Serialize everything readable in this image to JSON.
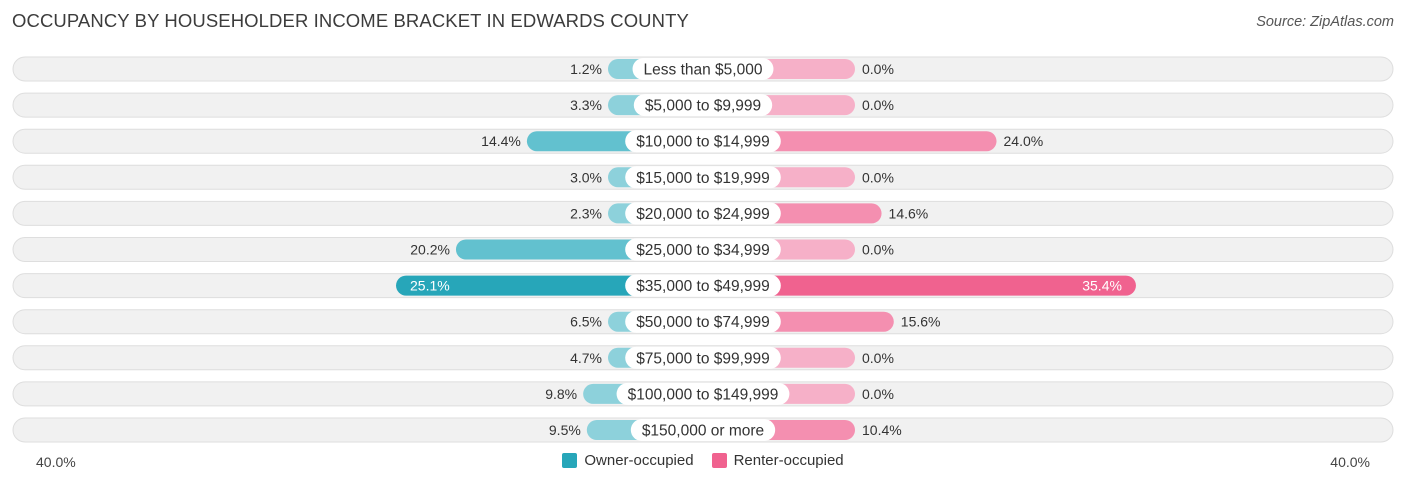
{
  "header": {
    "title": "OCCUPANCY BY HOUSEHOLDER INCOME BRACKET IN EDWARDS COUNTY",
    "source": "Source: ZipAtlas.com"
  },
  "axis": {
    "left_label": "40.0%",
    "right_label": "40.0%"
  },
  "legend": {
    "owner_label": "Owner-occupied",
    "renter_label": "Renter-occupied"
  },
  "colors": {
    "owner": "#62c1cf",
    "owner_strong": "#27a6b9",
    "owner_light": "#8dd1db",
    "renter": "#f48fb0",
    "renter_strong": "#f0628f",
    "renter_light": "#f6b0c8",
    "row_bg": "#f1f1f1",
    "row_border": "#dedede"
  },
  "chart_data": {
    "type": "bar",
    "orientation": "diverging-horizontal",
    "title": "OCCUPANCY BY HOUSEHOLDER INCOME BRACKET IN EDWARDS COUNTY",
    "xlim": [
      -40,
      40
    ],
    "categories": [
      "Less than $5,000",
      "$5,000 to $9,999",
      "$10,000 to $14,999",
      "$15,000 to $19,999",
      "$20,000 to $24,999",
      "$25,000 to $34,999",
      "$35,000 to $49,999",
      "$50,000 to $74,999",
      "$75,000 to $99,999",
      "$100,000 to $149,999",
      "$150,000 or more"
    ],
    "series": [
      {
        "name": "Owner-occupied",
        "values": [
          1.2,
          3.3,
          14.4,
          3.0,
          2.3,
          20.2,
          25.1,
          6.5,
          4.7,
          9.8,
          9.5
        ],
        "labels": [
          "1.2%",
          "3.3%",
          "14.4%",
          "3.0%",
          "2.3%",
          "20.2%",
          "25.1%",
          "6.5%",
          "4.7%",
          "9.8%",
          "9.5%"
        ]
      },
      {
        "name": "Renter-occupied",
        "values": [
          0.0,
          0.0,
          24.0,
          0.0,
          14.6,
          0.0,
          35.4,
          15.6,
          0.0,
          0.0,
          10.4
        ],
        "labels": [
          "0.0%",
          "0.0%",
          "24.0%",
          "0.0%",
          "14.6%",
          "0.0%",
          "35.4%",
          "15.6%",
          "0.0%",
          "0.0%",
          "10.4%"
        ]
      }
    ],
    "legend_position": "bottom-center",
    "grid": false
  }
}
